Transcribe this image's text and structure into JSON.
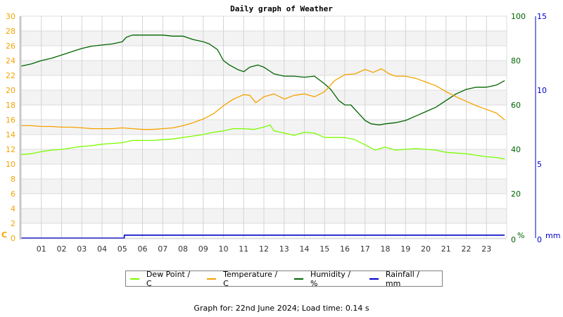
{
  "chart_data": {
    "type": "line",
    "title": "Daily graph of Weather",
    "xlabel": "",
    "x_ticks": [
      "01",
      "02",
      "03",
      "04",
      "05",
      "06",
      "07",
      "08",
      "09",
      "10",
      "11",
      "12",
      "13",
      "14",
      "15",
      "16",
      "17",
      "18",
      "19",
      "20",
      "21",
      "22",
      "23"
    ],
    "xlim": [
      0,
      24
    ],
    "axes": {
      "left": {
        "label": "C",
        "ylim": [
          0,
          30
        ],
        "ticks": [
          0,
          2,
          4,
          6,
          8,
          10,
          12,
          14,
          16,
          18,
          20,
          22,
          24,
          26,
          28,
          30
        ],
        "color": "#f5a300"
      },
      "right1": {
        "label": "%",
        "ylim": [
          0,
          100
        ],
        "ticks": [
          0,
          20,
          40,
          60,
          80,
          100
        ],
        "color": "#006400"
      },
      "right2": {
        "label": "mm",
        "ylim": [
          0,
          15
        ],
        "ticks": [
          0,
          5,
          10,
          15
        ],
        "color": "#0000cc"
      }
    },
    "grid": true,
    "legend_position": "bottom",
    "series": [
      {
        "name": "Dew Point / C",
        "axis": "left",
        "color": "#7cfc00",
        "x": [
          0,
          0.5,
          1,
          1.5,
          2,
          2.5,
          3,
          3.5,
          4,
          4.5,
          5,
          5.5,
          6,
          6.5,
          7,
          7.5,
          8,
          8.5,
          9,
          9.5,
          10,
          10.5,
          11,
          11.5,
          12,
          12.3,
          12.5,
          13,
          13.5,
          14,
          14.5,
          15,
          15.5,
          16,
          16.5,
          17,
          17.5,
          18,
          18.5,
          19,
          19.5,
          20,
          20.5,
          21,
          21.5,
          22,
          22.5,
          23,
          23.5,
          23.9
        ],
        "values": [
          11.3,
          11.4,
          11.7,
          11.9,
          12.0,
          12.2,
          12.4,
          12.5,
          12.7,
          12.8,
          12.9,
          13.2,
          13.2,
          13.2,
          13.3,
          13.4,
          13.6,
          13.8,
          14.0,
          14.3,
          14.5,
          14.8,
          14.8,
          14.7,
          15.0,
          15.3,
          14.5,
          14.2,
          13.9,
          14.3,
          14.2,
          13.6,
          13.6,
          13.6,
          13.3,
          12.6,
          11.9,
          12.3,
          11.9,
          12.0,
          12.1,
          12.0,
          11.9,
          11.6,
          11.5,
          11.4,
          11.2,
          11.0,
          10.9,
          10.7
        ]
      },
      {
        "name": "Temperature / C",
        "axis": "left",
        "color": "#f5a300",
        "x": [
          0,
          0.5,
          1,
          1.5,
          2,
          2.5,
          3,
          3.5,
          4,
          4.5,
          5,
          5.5,
          6,
          6.5,
          7,
          7.5,
          8,
          8.5,
          9,
          9.5,
          10,
          10.5,
          11,
          11.3,
          11.6,
          12,
          12.5,
          13,
          13.5,
          14,
          14.5,
          15,
          15.5,
          16,
          16.5,
          17,
          17.4,
          17.8,
          18.2,
          18.5,
          19,
          19.5,
          20,
          20.5,
          21,
          21.5,
          22,
          22.5,
          23,
          23.5,
          23.9
        ],
        "values": [
          15.2,
          15.2,
          15.1,
          15.1,
          15.0,
          15.0,
          14.9,
          14.8,
          14.8,
          14.8,
          14.9,
          14.8,
          14.7,
          14.7,
          14.8,
          14.9,
          15.2,
          15.6,
          16.1,
          16.8,
          17.9,
          18.8,
          19.4,
          19.3,
          18.3,
          19.1,
          19.5,
          18.8,
          19.3,
          19.5,
          19.1,
          19.8,
          21.3,
          22.1,
          22.2,
          22.8,
          22.4,
          22.9,
          22.2,
          21.9,
          21.9,
          21.6,
          21.1,
          20.6,
          19.8,
          19.1,
          18.5,
          17.9,
          17.4,
          16.9,
          16.0
        ]
      },
      {
        "name": "Humidity / %",
        "axis": "right1",
        "color": "#006400",
        "x": [
          0,
          0.5,
          1,
          1.5,
          2,
          2.5,
          3,
          3.5,
          4,
          4.5,
          5,
          5.2,
          5.5,
          6,
          6.5,
          7,
          7.5,
          8,
          8.5,
          9,
          9.3,
          9.7,
          10,
          10.3,
          10.7,
          11,
          11.3,
          11.7,
          12,
          12.5,
          13,
          13.5,
          14,
          14.5,
          15,
          15.3,
          15.7,
          16,
          16.3,
          16.7,
          17,
          17.3,
          17.7,
          18,
          18.5,
          19,
          19.5,
          20,
          20.5,
          21,
          21.5,
          22,
          22.5,
          23,
          23.5,
          23.9
        ],
        "values": [
          77.5,
          78.5,
          80,
          81,
          82.5,
          84,
          85.5,
          86.5,
          87,
          87.5,
          88.5,
          90.5,
          91.5,
          91.5,
          91.5,
          91.5,
          91.0,
          91.0,
          89.5,
          88.5,
          87.5,
          85,
          80,
          78,
          76,
          75,
          77,
          78,
          77,
          74,
          73,
          73,
          72.5,
          73,
          69.5,
          67,
          62,
          60,
          60,
          56,
          53,
          51.5,
          51,
          51.5,
          52,
          53,
          55,
          57,
          59,
          62,
          65,
          67,
          68,
          68,
          69,
          71
        ]
      },
      {
        "name": "Rainfall / mm",
        "axis": "right2",
        "color": "#0000cc",
        "x": [
          0,
          5.1,
          5.1,
          23.9
        ],
        "values": [
          0,
          0,
          0.2,
          0.2
        ]
      }
    ]
  },
  "legend": {
    "items": [
      {
        "label": "Dew Point / C",
        "color": "#7cfc00"
      },
      {
        "label": "Temperature / C",
        "color": "#f5a300"
      },
      {
        "label": "Humidity / %",
        "color": "#006400"
      },
      {
        "label": "Rainfall / mm",
        "color": "#0000cc"
      }
    ]
  },
  "footer": {
    "text": "Graph for: 22nd June 2024; Load time: 0.14 s"
  }
}
